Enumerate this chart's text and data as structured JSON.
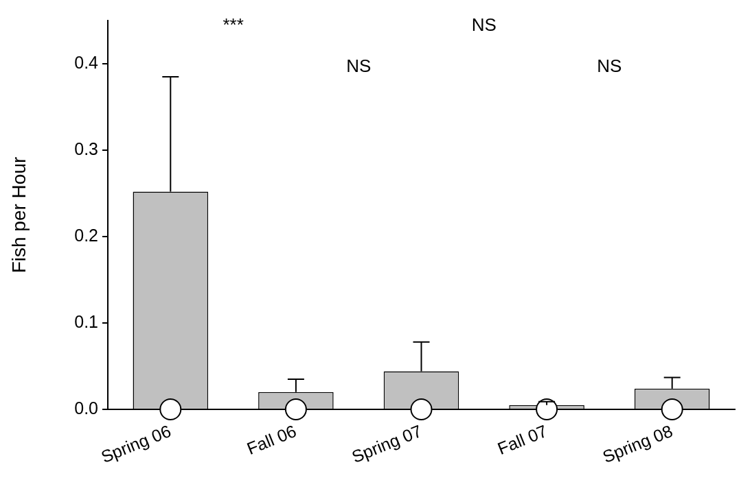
{
  "chart_data": {
    "type": "bar",
    "ylabel": "Fish per Hour",
    "categories": [
      "Spring 06",
      "Fall 06",
      "Spring 07",
      "Fall 07",
      "Spring 08"
    ],
    "series": [
      {
        "color": "#c0c0c0",
        "values": [
          0.252,
          0.02,
          0.044,
          0.005,
          0.024
        ],
        "errors": [
          [
            0.252,
            0.385
          ],
          [
            0.02,
            0.035
          ],
          [
            0.044,
            0.078
          ],
          [
            0.005,
            0.009
          ],
          [
            0.024,
            0.037
          ]
        ]
      },
      {
        "type": "scatter",
        "color": "#ffffff",
        "x": [
          "Spring 06",
          "Fall 06",
          "Spring 07",
          "Fall 07",
          "Spring 08"
        ],
        "values": [
          0,
          0,
          0,
          0,
          0
        ]
      }
    ],
    "ylim": [
      0,
      0.45
    ],
    "yticks": [
      {
        "value": 0,
        "label": "0.0"
      },
      0.1,
      0.2,
      0.3,
      0.4
    ],
    "marker": "circle",
    "grid": false,
    "legend": false,
    "annotations": [
      "***",
      "NS",
      "NS",
      "NS"
    ]
  }
}
